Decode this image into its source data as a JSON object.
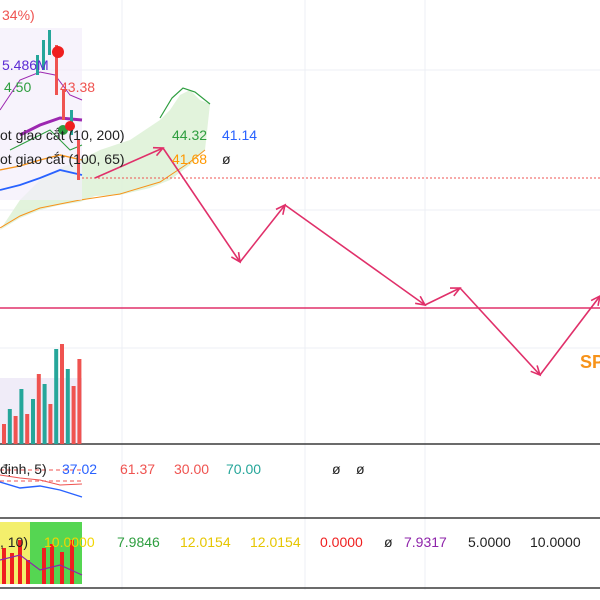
{
  "chart_data": {
    "type": "line",
    "title": "",
    "colors": {
      "projection": "#e0306a",
      "price_candle_up": "#26a69a",
      "price_candle_down": "#ef5350",
      "ma_purple": "#9c27b0",
      "ma_blue": "#2962ff",
      "ma_orange": "#ff9800",
      "ichimoku_green": "#2e9e3f",
      "cloud_fill": "#dff2d8",
      "level_line": "#e0306a",
      "dotted_price": "#ef5350",
      "sp_label": "#f7931a"
    },
    "overlay": {
      "pct_fragment": "34%)",
      "price_a": "5.486M",
      "price_b": "4.50",
      "price_c": "43.38"
    },
    "legend_rows": [
      {
        "name": "ot giao cắt (10, 200)",
        "v1": "44.32",
        "v2": "41.14",
        "c1": "#2e9e3f",
        "c2": "#2962ff"
      },
      {
        "name": "ot giao cắt (100, 65)",
        "v1": "41.68",
        "v2": "ø",
        "c1": "#ff9800",
        "c2": "#222222"
      }
    ],
    "sp_label": "SP",
    "projection_path": [
      {
        "x": 0,
        "y": 178
      },
      {
        "x": 1,
        "y": 148
      },
      {
        "x": 2,
        "y": 262
      },
      {
        "x": 3,
        "y": 205
      },
      {
        "x": 4,
        "y": 305
      },
      {
        "x": 5,
        "y": 288
      },
      {
        "x": 6,
        "y": 375
      },
      {
        "x": 7,
        "y": 296
      }
    ],
    "volume_bars": [
      {
        "v": 20,
        "up": false
      },
      {
        "v": 35,
        "up": true
      },
      {
        "v": 28,
        "up": false
      },
      {
        "v": 55,
        "up": true
      },
      {
        "v": 30,
        "up": false
      },
      {
        "v": 45,
        "up": true
      },
      {
        "v": 70,
        "up": false
      },
      {
        "v": 60,
        "up": true
      },
      {
        "v": 40,
        "up": false
      },
      {
        "v": 95,
        "up": true
      },
      {
        "v": 100,
        "up": false
      },
      {
        "v": 75,
        "up": true
      },
      {
        "v": 58,
        "up": false
      },
      {
        "v": 85,
        "up": false
      }
    ],
    "oscillator": {
      "label": "định, 5)",
      "values": [
        {
          "t": "37.02",
          "c": "#2962ff"
        },
        {
          "t": "61.37",
          "c": "#ef5350"
        },
        {
          "t": "30.00",
          "c": "#ef5350"
        },
        {
          "t": "70.00",
          "c": "#26a69a"
        },
        {
          "t": "ø",
          "c": "#222222"
        },
        {
          "t": "ø",
          "c": "#222222"
        }
      ]
    },
    "bottom_indicator": {
      "label": ", 10)",
      "values": [
        {
          "t": "10.0000",
          "c": "#f2d600"
        },
        {
          "t": "7.9846",
          "c": "#2e9e3f"
        },
        {
          "t": "12.0154",
          "c": "#e6c600"
        },
        {
          "t": "12.0154",
          "c": "#e6c600"
        },
        {
          "t": "0.0000",
          "c": "#ef1f1f"
        },
        {
          "t": "ø",
          "c": "#222222"
        },
        {
          "t": "7.9317",
          "c": "#8e24aa"
        },
        {
          "t": "5.0000",
          "c": "#222222"
        },
        {
          "t": "10.0000",
          "c": "#222222"
        }
      ]
    }
  }
}
